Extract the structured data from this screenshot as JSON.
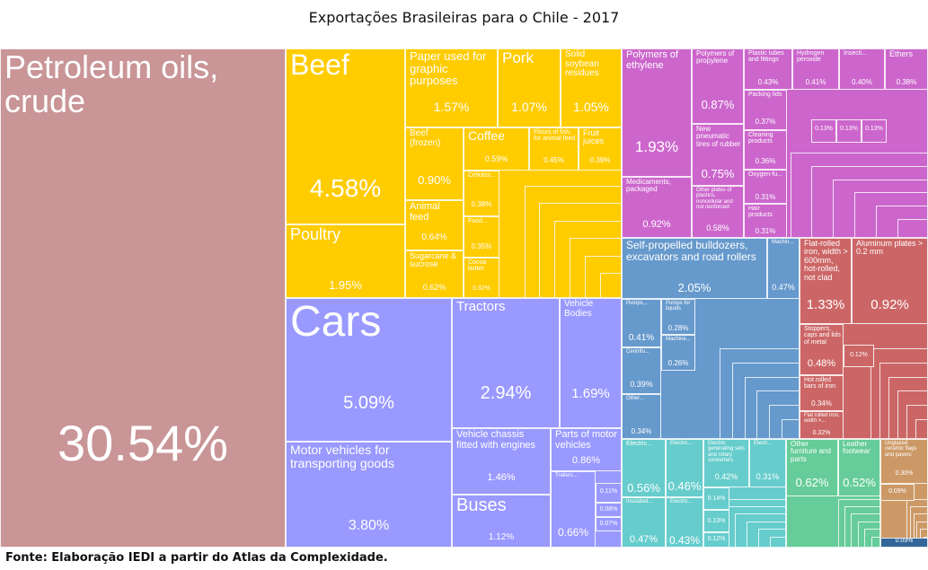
{
  "title": "Exportações Brasileiras para o Chile - 2017",
  "source": "Fonte: Elaboração IEDI a partir do Atlas da Complexidade.",
  "colors": {
    "minerals": "#c99597",
    "food": "#ffcc00",
    "vehicles": "#9999ff",
    "chemicals": "#cc66cc",
    "machinery": "#6699cc",
    "metals": "#cc6666",
    "electronics": "#66cccc",
    "misc": "#66cc99",
    "stone": "#cc9966",
    "other": "#336699"
  },
  "chart_data": {
    "type": "treemap",
    "title": "Exportações Brasileiras para o Chile - 2017",
    "unit": "% of total exports",
    "items": [
      {
        "name": "Petroleum oils, crude",
        "value": 30.54,
        "group": "minerals"
      },
      {
        "name": "Beef",
        "value": 4.58,
        "group": "food"
      },
      {
        "name": "Poultry",
        "value": 1.95,
        "group": "food"
      },
      {
        "name": "Paper used for graphic purposes",
        "value": 1.57,
        "group": "food"
      },
      {
        "name": "Pork",
        "value": 1.07,
        "group": "food"
      },
      {
        "name": "Solid soybean residues",
        "value": 1.05,
        "group": "food"
      },
      {
        "name": "Beef (frozen)",
        "value": 0.9,
        "group": "food"
      },
      {
        "name": "Animal feed",
        "value": 0.64,
        "group": "food"
      },
      {
        "name": "Sugarcane & sucrose",
        "value": 0.62,
        "group": "food"
      },
      {
        "name": "Coffee",
        "value": 0.59,
        "group": "food"
      },
      {
        "name": "Flours of fish, for animal feed",
        "value": 0.45,
        "group": "food"
      },
      {
        "name": "Fruit juices",
        "value": 0.39,
        "group": "food"
      },
      {
        "name": "Cellulos...",
        "value": 0.38,
        "group": "food"
      },
      {
        "name": "Food...",
        "value": 0.35,
        "group": "food"
      },
      {
        "name": "Cocoa butter",
        "value": 0.32,
        "group": "food"
      },
      {
        "name": "Cars",
        "value": 5.09,
        "group": "vehicles"
      },
      {
        "name": "Motor vehicles for transporting goods",
        "value": 3.8,
        "group": "vehicles"
      },
      {
        "name": "Tractors",
        "value": 2.94,
        "group": "vehicles"
      },
      {
        "name": "Vehicle Bodies",
        "value": 1.69,
        "group": "vehicles"
      },
      {
        "name": "Vehicle chassis fitted with engines",
        "value": 1.46,
        "group": "vehicles"
      },
      {
        "name": "Buses",
        "value": 1.12,
        "group": "vehicles"
      },
      {
        "name": "Parts of motor vehicles",
        "value": 0.86,
        "group": "vehicles"
      },
      {
        "name": "Trailers...",
        "value": 0.66,
        "group": "vehicles"
      },
      {
        "name": "",
        "value": 0.11,
        "group": "vehicles"
      },
      {
        "name": "",
        "value": 0.08,
        "group": "vehicles"
      },
      {
        "name": "",
        "value": 0.07,
        "group": "vehicles"
      },
      {
        "name": "Polymers of ethylene",
        "value": 1.93,
        "group": "chemicals"
      },
      {
        "name": "Medicaments, packaged",
        "value": 0.92,
        "group": "chemicals"
      },
      {
        "name": "Polymers of propylene",
        "value": 0.87,
        "group": "chemicals"
      },
      {
        "name": "New pneumatic tires of rubber",
        "value": 0.75,
        "group": "chemicals"
      },
      {
        "name": "Other plates of plastics, noncellular and not reinforced",
        "value": 0.58,
        "group": "chemicals"
      },
      {
        "name": "Plastic tubes and fittings",
        "value": 0.43,
        "group": "chemicals"
      },
      {
        "name": "Hydrogen peroxide",
        "value": 0.41,
        "group": "chemicals"
      },
      {
        "name": "Insecti...",
        "value": 0.4,
        "group": "chemicals"
      },
      {
        "name": "Ethers",
        "value": 0.38,
        "group": "chemicals"
      },
      {
        "name": "Packing lids",
        "value": 0.37,
        "group": "chemicals"
      },
      {
        "name": "Cleaning products",
        "value": 0.36,
        "group": "chemicals"
      },
      {
        "name": "Oxygen-fu...",
        "value": 0.31,
        "group": "chemicals"
      },
      {
        "name": "Hair products",
        "value": 0.31,
        "group": "chemicals"
      },
      {
        "name": "",
        "value": 0.13,
        "group": "chemicals"
      },
      {
        "name": "",
        "value": 0.13,
        "group": "chemicals"
      },
      {
        "name": "",
        "value": 0.13,
        "group": "chemicals"
      },
      {
        "name": "Self-propelled bulldozers, excavators and road rollers",
        "value": 2.05,
        "group": "machinery"
      },
      {
        "name": "Machin...",
        "value": 0.47,
        "group": "machinery"
      },
      {
        "name": "Pumps,...",
        "value": 0.41,
        "group": "machinery"
      },
      {
        "name": "Centrifu...",
        "value": 0.39,
        "group": "machinery"
      },
      {
        "name": "Other...",
        "value": 0.34,
        "group": "machinery"
      },
      {
        "name": "Pumps for liquids",
        "value": 0.28,
        "group": "machinery"
      },
      {
        "name": "Machine...",
        "value": 0.26,
        "group": "machinery"
      },
      {
        "name": "Flat-rolled iron, width > 600mm, hot-rolled, not clad",
        "value": 1.33,
        "group": "metals"
      },
      {
        "name": "Aluminum plates > 0.2 mm",
        "value": 0.92,
        "group": "metals"
      },
      {
        "name": "Stoppers, caps and lids of metal",
        "value": 0.48,
        "group": "metals"
      },
      {
        "name": "Hot rolled bars of iron",
        "value": 0.34,
        "group": "metals"
      },
      {
        "name": "Flat rolled iron, width >...",
        "value": 0.32,
        "group": "metals"
      },
      {
        "name": "",
        "value": 0.12,
        "group": "metals"
      },
      {
        "name": "Electric...",
        "value": 0.56,
        "group": "electronics"
      },
      {
        "name": "Insulated...",
        "value": 0.47,
        "group": "electronics"
      },
      {
        "name": "Electric...",
        "value": 0.46,
        "group": "electronics"
      },
      {
        "name": "Electric...",
        "value": 0.43,
        "group": "electronics"
      },
      {
        "name": "Electric generating sets and rotary converters",
        "value": 0.42,
        "group": "electronics"
      },
      {
        "name": "Electr...",
        "value": 0.31,
        "group": "electronics"
      },
      {
        "name": "",
        "value": 0.14,
        "group": "electronics"
      },
      {
        "name": "",
        "value": 0.13,
        "group": "electronics"
      },
      {
        "name": "",
        "value": 0.12,
        "group": "electronics"
      },
      {
        "name": "Other furniture and parts",
        "value": 0.62,
        "group": "misc"
      },
      {
        "name": "Leather footwear",
        "value": 0.52,
        "group": "misc"
      },
      {
        "name": "Unglazed ceramic flags and pavers",
        "value": 0.3,
        "group": "stone"
      },
      {
        "name": "",
        "value": 0.09,
        "group": "stone"
      },
      {
        "name": "",
        "value": 0.09,
        "group": "other"
      }
    ]
  }
}
